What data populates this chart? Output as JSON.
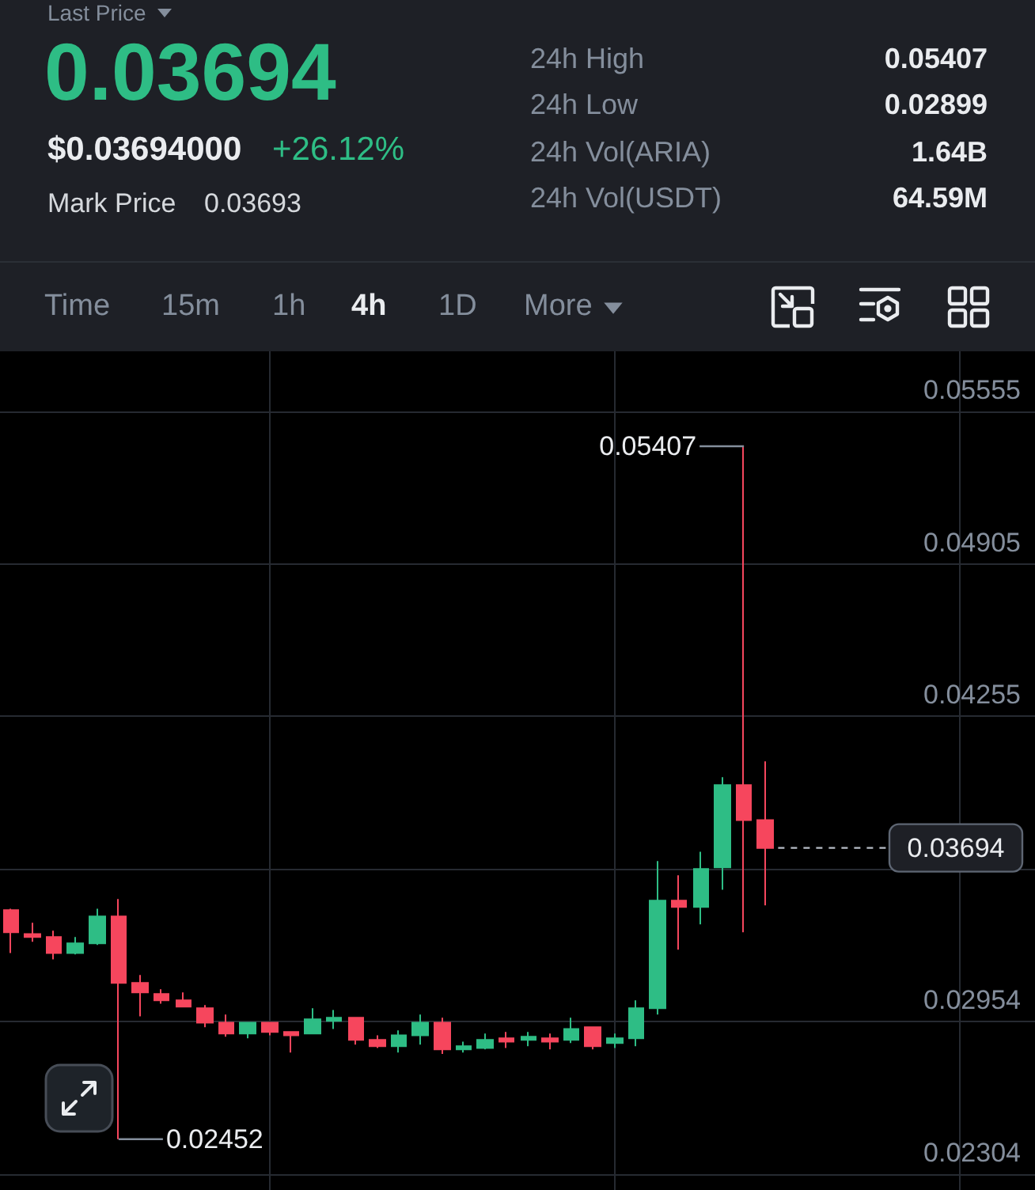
{
  "chart_data": {
    "type": "candlestick",
    "categories": [
      null,
      null,
      null,
      null,
      null,
      null,
      null,
      null,
      null,
      null,
      null,
      null,
      null,
      null,
      null,
      null,
      null,
      null,
      null,
      null,
      null,
      null,
      null,
      null,
      null,
      null,
      null,
      null,
      null,
      null,
      null,
      null,
      null,
      null,
      null,
      null,
      null,
      null,
      null,
      null,
      null,
      null,
      null,
      null,
      null,
      null,
      null,
      null
    ],
    "ohlc": [
      [
        0.03429,
        0.03435,
        0.03246,
        0.03334
      ],
      [
        0.03327,
        0.03375,
        0.03294,
        0.03314
      ],
      [
        0.03314,
        0.03341,
        0.03219,
        0.03246
      ],
      [
        0.03246,
        0.03314,
        0.0324,
        0.03287
      ],
      [
        0.03287,
        0.03435,
        0.0328,
        0.03402
      ],
      [
        0.03402,
        0.03476,
        0.02452,
        0.03118
      ],
      [
        0.03118,
        0.03152,
        0.02976,
        0.03078
      ],
      [
        0.03071,
        0.03091,
        0.0303,
        0.03044
      ],
      [
        0.03044,
        0.03078,
        0.03015,
        0.03017
      ],
      [
        0.0301,
        0.03024,
        0.02929,
        0.02949
      ],
      [
        0.02949,
        0.02983,
        0.02889,
        0.02902
      ],
      [
        0.02902,
        0.02952,
        0.02882,
        0.02949
      ],
      [
        0.02949,
        0.02952,
        0.02895,
        0.02909
      ],
      [
        0.02909,
        0.02912,
        0.02821,
        0.02895
      ],
      [
        0.02902,
        0.0301,
        0.029,
        0.02963
      ],
      [
        0.02956,
        0.03003,
        0.02922,
        0.0297
      ],
      [
        0.0297,
        0.02973,
        0.02855,
        0.02875
      ],
      [
        0.02875,
        0.02895,
        0.02841,
        0.02848
      ],
      [
        0.02848,
        0.02916,
        0.02821,
        0.02895
      ],
      [
        0.02895,
        0.02983,
        0.02855,
        0.02949
      ],
      [
        0.02949,
        0.0297,
        0.02815,
        0.02835
      ],
      [
        0.02835,
        0.02868,
        0.02821,
        0.02848
      ],
      [
        0.02841,
        0.02902,
        0.02835,
        0.02875
      ],
      [
        0.02882,
        0.02909,
        0.02841,
        0.02868
      ],
      [
        0.02875,
        0.02909,
        0.02848,
        0.02889
      ],
      [
        0.02882,
        0.02902,
        0.02835,
        0.02868
      ],
      [
        0.02875,
        0.0297,
        0.02862,
        0.02922
      ],
      [
        0.02929,
        0.02932,
        0.02835,
        0.02848
      ],
      [
        0.02862,
        0.02902,
        0.02841,
        0.02882
      ],
      [
        0.02882,
        0.03044,
        0.02848,
        0.0301
      ],
      [
        0.0301,
        0.03638,
        0.02983,
        0.03469
      ],
      [
        0.03469,
        0.03577,
        0.0326,
        0.03442
      ],
      [
        0.03442,
        0.03678,
        0.03368,
        0.03604
      ],
      [
        0.03611,
        0.03996,
        0.03516,
        0.03962
      ],
      [
        0.03962,
        0.05407,
        0.03334,
        0.03813
      ],
      [
        0.03813,
        0.04063,
        0.03449,
        0.03694
      ],
      null,
      null,
      null,
      null,
      null,
      null,
      null,
      null,
      null,
      null,
      null,
      null
    ],
    "colors": [
      "#f6465d",
      "#f6465d",
      "#f6465d",
      "#2ebd85",
      "#2ebd85",
      "#f6465d",
      "#f6465d",
      "#f6465d",
      "#f6465d",
      "#f6465d",
      "#f6465d",
      "#2ebd85",
      "#f6465d",
      "#f6465d",
      "#2ebd85",
      "#2ebd85",
      "#f6465d",
      "#f6465d",
      "#2ebd85",
      "#2ebd85",
      "#f6465d",
      "#2ebd85",
      "#2ebd85",
      "#f6465d",
      "#2ebd85",
      "#f6465d",
      "#2ebd85",
      "#f6465d",
      "#2ebd85",
      "#2ebd85",
      "#2ebd85",
      "#f6465d",
      "#2ebd85",
      "#2ebd85",
      "#f6465d",
      "#f6465d",
      null,
      null,
      null,
      null,
      null,
      null,
      null,
      null,
      null,
      null,
      null,
      null
    ],
    "ylim": [
      0.02235,
      0.05812
    ],
    "yticks": [
      0.02304,
      0.02954,
      {
        "value": 0.03604,
        "label": null
      },
      0.04255,
      0.04905,
      0.05555
    ],
    "grid": true,
    "tick_labels": "y",
    "ref_lines": [
      {
        "axis": "y",
        "value": 0.03694,
        "label": "0.03694",
        "line_style": "dashed"
      }
    ],
    "annotations": [
      "Last Price",
      "0.03694",
      "$0.03694000",
      "+26.12%",
      "Mark Price",
      "0.03693",
      "24h High",
      "0.05407",
      "24h Low",
      "0.02899",
      "24h Vol(ARIA)",
      "1.64B",
      "24h Vol(USDT)",
      "64.59M",
      "Time",
      "15m",
      "1h",
      "4h",
      "1D",
      "More",
      "0.05407",
      "0.02452"
    ]
  }
}
